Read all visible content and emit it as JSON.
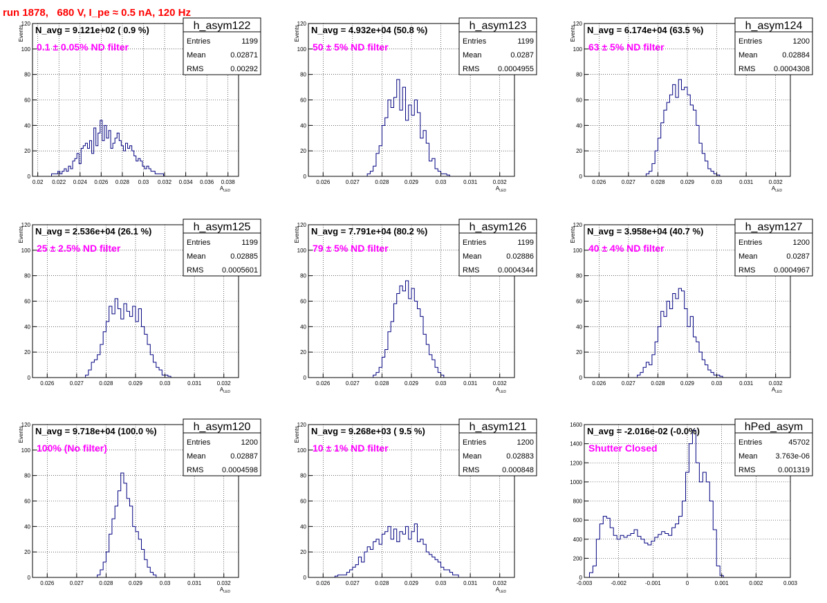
{
  "header": {
    "title": "run 1878,   680 V, I_pe ≈ 0.5 nA, 120 Hz"
  },
  "chart_data": [
    {
      "type": "bar",
      "name": "h_asym122",
      "stats": {
        "entries_label": "Entries",
        "entries": "1199",
        "mean_label": "Mean",
        "mean": "0.02871",
        "rms_label": "RMS",
        "rms": "0.00292"
      },
      "navg": "N_avg = 9.121e+02 ( 0.9 %)",
      "filter": "0.1 ± 0.05% ND filter",
      "ylabel": "Events",
      "xlabel": "A",
      "xlabel_sub": "LED",
      "xlim": [
        0.0195,
        0.039
      ],
      "ylim": [
        0,
        120
      ],
      "xticks": [
        0.02,
        0.022,
        0.024,
        0.026,
        0.028,
        0.03,
        0.032,
        0.034,
        0.036,
        0.038
      ],
      "xtick_labels": [
        "0.02",
        "0.022",
        "0.024",
        "0.026",
        "0.028",
        "0.03",
        "0.032",
        "0.034",
        "0.036",
        "0.038"
      ],
      "yticks": [
        0,
        20,
        40,
        60,
        80,
        100,
        120
      ],
      "bin_start": 0.0213,
      "bin_width": 0.0002,
      "values": [
        2,
        2,
        2,
        4,
        2,
        4,
        6,
        4,
        8,
        6,
        12,
        14,
        18,
        10,
        22,
        24,
        26,
        22,
        28,
        18,
        38,
        24,
        34,
        44,
        28,
        40,
        30,
        36,
        22,
        26,
        30,
        34,
        28,
        24,
        20,
        26,
        22,
        24,
        20,
        16,
        12,
        14,
        12,
        8,
        6,
        8,
        6,
        4,
        4,
        2,
        2,
        2,
        2
      ]
    },
    {
      "type": "bar",
      "name": "h_asym123",
      "stats": {
        "entries_label": "Entries",
        "entries": "1199",
        "mean_label": "Mean",
        "mean": "0.0287",
        "rms_label": "RMS",
        "rms": "0.0004955"
      },
      "navg": "N_avg = 4.932e+04 (50.8 %)",
      "filter": "50 ± 5% ND filter",
      "ylabel": "Events",
      "xlabel": "A",
      "xlabel_sub": "LED",
      "xlim": [
        0.0255,
        0.0325
      ],
      "ylim": [
        0,
        120
      ],
      "xticks": [
        0.026,
        0.027,
        0.028,
        0.029,
        0.03,
        0.031,
        0.032
      ],
      "xtick_labels": [
        "0.026",
        "0.027",
        "0.028",
        "0.029",
        "0.03",
        "0.031",
        "0.032"
      ],
      "yticks": [
        0,
        20,
        40,
        60,
        80,
        100,
        120
      ],
      "bin_start": 0.0275,
      "bin_width": 0.0001,
      "values": [
        2,
        4,
        8,
        18,
        24,
        40,
        46,
        60,
        54,
        62,
        76,
        52,
        70,
        44,
        56,
        48,
        60,
        50,
        30,
        36,
        26,
        12,
        14,
        6,
        4,
        2,
        2,
        1
      ]
    },
    {
      "type": "bar",
      "name": "h_asym124",
      "stats": {
        "entries_label": "Entries",
        "entries": "1200",
        "mean_label": "Mean",
        "mean": "0.02884",
        "rms_label": "RMS",
        "rms": "0.0004308"
      },
      "navg": "N_avg = 6.174e+04 (63.5 %)",
      "filter": "63 ± 5% ND filter",
      "ylabel": "Events",
      "xlabel": "A",
      "xlabel_sub": "LED",
      "xlim": [
        0.0255,
        0.0325
      ],
      "ylim": [
        0,
        120
      ],
      "xticks": [
        0.026,
        0.027,
        0.028,
        0.029,
        0.03,
        0.031,
        0.032
      ],
      "xtick_labels": [
        "0.026",
        "0.027",
        "0.028",
        "0.029",
        "0.03",
        "0.031",
        "0.032"
      ],
      "yticks": [
        0,
        20,
        40,
        60,
        80,
        100,
        120
      ],
      "bin_start": 0.0276,
      "bin_width": 0.0001,
      "values": [
        2,
        4,
        10,
        20,
        30,
        42,
        52,
        58,
        64,
        72,
        62,
        76,
        68,
        70,
        64,
        56,
        52,
        40,
        26,
        18,
        12,
        6,
        4,
        2,
        1
      ]
    },
    {
      "type": "bar",
      "name": "h_asym125",
      "stats": {
        "entries_label": "Entries",
        "entries": "1199",
        "mean_label": "Mean",
        "mean": "0.02885",
        "rms_label": "RMS",
        "rms": "0.0005601"
      },
      "navg": "N_avg = 2.536e+04 (26.1 %)",
      "filter": "25 ± 2.5% ND filter",
      "ylabel": "Events",
      "xlabel": "A",
      "xlabel_sub": "LED",
      "xlim": [
        0.0255,
        0.0325
      ],
      "ylim": [
        0,
        120
      ],
      "xticks": [
        0.026,
        0.027,
        0.028,
        0.029,
        0.03,
        0.031,
        0.032
      ],
      "xtick_labels": [
        "0.026",
        "0.027",
        "0.028",
        "0.029",
        "0.03",
        "0.031",
        "0.032"
      ],
      "yticks": [
        0,
        20,
        40,
        60,
        80,
        100,
        120
      ],
      "bin_start": 0.0273,
      "bin_width": 0.0001,
      "values": [
        2,
        6,
        12,
        14,
        18,
        26,
        36,
        44,
        56,
        50,
        62,
        54,
        46,
        58,
        52,
        48,
        56,
        44,
        54,
        40,
        34,
        26,
        18,
        12,
        8,
        6,
        2,
        2,
        1
      ]
    },
    {
      "type": "bar",
      "name": "h_asym126",
      "stats": {
        "entries_label": "Entries",
        "entries": "1199",
        "mean_label": "Mean",
        "mean": "0.02886",
        "rms_label": "RMS",
        "rms": "0.0004344"
      },
      "navg": "N_avg = 7.791e+04 (80.2 %)",
      "filter": "79 ± 5% ND filter",
      "ylabel": "Events",
      "xlabel": "A",
      "xlabel_sub": "LED",
      "xlim": [
        0.0255,
        0.0325
      ],
      "ylim": [
        0,
        120
      ],
      "xticks": [
        0.026,
        0.027,
        0.028,
        0.029,
        0.03,
        0.031,
        0.032
      ],
      "xtick_labels": [
        "0.026",
        "0.027",
        "0.028",
        "0.029",
        "0.03",
        "0.031",
        "0.032"
      ],
      "yticks": [
        0,
        20,
        40,
        60,
        80,
        100,
        120
      ],
      "bin_start": 0.0277,
      "bin_width": 0.0001,
      "values": [
        2,
        4,
        8,
        16,
        22,
        36,
        44,
        58,
        66,
        72,
        68,
        76,
        62,
        70,
        60,
        54,
        48,
        34,
        26,
        18,
        14,
        8,
        4,
        2
      ]
    },
    {
      "type": "bar",
      "name": "h_asym127",
      "stats": {
        "entries_label": "Entries",
        "entries": "1200",
        "mean_label": "Mean",
        "mean": "0.0287",
        "rms_label": "RMS",
        "rms": "0.0004967"
      },
      "navg": "N_avg = 3.958e+04 (40.7 %)",
      "filter": "40 ± 4% ND filter",
      "ylabel": "Events",
      "xlabel": "A",
      "xlabel_sub": "LED",
      "xlim": [
        0.0255,
        0.0325
      ],
      "ylim": [
        0,
        120
      ],
      "xticks": [
        0.026,
        0.027,
        0.028,
        0.029,
        0.03,
        0.031,
        0.032
      ],
      "xtick_labels": [
        "0.026",
        "0.027",
        "0.028",
        "0.029",
        "0.03",
        "0.031",
        "0.032"
      ],
      "yticks": [
        0,
        20,
        40,
        60,
        80,
        100,
        120
      ],
      "bin_start": 0.0273,
      "bin_width": 0.0001,
      "values": [
        2,
        4,
        8,
        12,
        10,
        18,
        28,
        40,
        52,
        48,
        60,
        54,
        66,
        62,
        70,
        68,
        54,
        40,
        48,
        32,
        28,
        20,
        14,
        10,
        6,
        4,
        2,
        2,
        1
      ]
    },
    {
      "type": "bar",
      "name": "h_asym120",
      "stats": {
        "entries_label": "Entries",
        "entries": "1200",
        "mean_label": "Mean",
        "mean": "0.02887",
        "rms_label": "RMS",
        "rms": "0.0004598"
      },
      "navg": "N_avg = 9.718e+04 (100.0 %)",
      "filter": "100% (No filter)",
      "ylabel": "Events",
      "xlabel": "A",
      "xlabel_sub": "LED",
      "xlim": [
        0.0255,
        0.0325
      ],
      "ylim": [
        0,
        120
      ],
      "xticks": [
        0.026,
        0.027,
        0.028,
        0.029,
        0.03,
        0.031,
        0.032
      ],
      "xtick_labels": [
        "0.026",
        "0.027",
        "0.028",
        "0.029",
        "0.03",
        "0.031",
        "0.032"
      ],
      "yticks": [
        0,
        20,
        40,
        60,
        80,
        100,
        120
      ],
      "bin_start": 0.0277,
      "bin_width": 0.0001,
      "values": [
        2,
        6,
        12,
        20,
        34,
        46,
        56,
        68,
        82,
        74,
        62,
        56,
        40,
        36,
        30,
        22,
        14,
        8,
        4,
        2
      ]
    },
    {
      "type": "bar",
      "name": "h_asym121",
      "stats": {
        "entries_label": "Entries",
        "entries": "1200",
        "mean_label": "Mean",
        "mean": "0.02883",
        "rms_label": "RMS",
        "rms": "0.000848"
      },
      "navg": "N_avg = 9.268e+03 ( 9.5 %)",
      "filter": "10 ± 1% ND filter",
      "ylabel": "Events",
      "xlabel": "A",
      "xlabel_sub": "LED",
      "xlim": [
        0.0255,
        0.0325
      ],
      "ylim": [
        0,
        120
      ],
      "xticks": [
        0.026,
        0.027,
        0.028,
        0.029,
        0.03,
        0.031,
        0.032
      ],
      "xtick_labels": [
        "0.026",
        "0.027",
        "0.028",
        "0.029",
        "0.03",
        "0.031",
        "0.032"
      ],
      "yticks": [
        0,
        20,
        40,
        60,
        80,
        100,
        120
      ],
      "bin_start": 0.0264,
      "bin_width": 0.0001,
      "values": [
        1,
        2,
        2,
        2,
        4,
        6,
        8,
        10,
        16,
        12,
        20,
        24,
        22,
        28,
        30,
        26,
        34,
        36,
        40,
        30,
        38,
        28,
        36,
        34,
        40,
        30,
        36,
        42,
        28,
        30,
        26,
        20,
        18,
        16,
        14,
        12,
        8,
        6,
        6,
        4,
        2,
        2
      ]
    },
    {
      "type": "bar",
      "name": "hPed_asym",
      "stats": {
        "entries_label": "Entries",
        "entries": "45702",
        "mean_label": "Mean",
        "mean": "3.763e-06",
        "rms_label": "RMS",
        "rms": "0.001319"
      },
      "navg": "N_avg = -2.016e-02 (-0.0%)",
      "filter": "Shutter Closed",
      "ylabel": "",
      "xlabel": "",
      "xlabel_sub": "",
      "xlim": [
        -0.003,
        0.003
      ],
      "ylim": [
        0,
        1600
      ],
      "xticks": [
        -0.003,
        -0.002,
        -0.001,
        0,
        0.001,
        0.002,
        0.003
      ],
      "xtick_labels": [
        "-0.003",
        "-0.002",
        "-0.001",
        "0",
        "0.001",
        "0.002",
        "0.003"
      ],
      "yticks": [
        0,
        200,
        400,
        600,
        800,
        1000,
        1200,
        1400,
        1600
      ],
      "bin_start": -0.00285,
      "bin_width": 0.0001,
      "values": [
        50,
        120,
        400,
        560,
        640,
        620,
        520,
        440,
        400,
        440,
        420,
        440,
        460,
        500,
        430,
        400,
        360,
        340,
        380,
        420,
        450,
        480,
        460,
        440,
        520,
        560,
        640,
        800,
        1100,
        1400,
        1540,
        1200,
        1000,
        1100,
        1000,
        800,
        500,
        120,
        20
      ]
    }
  ]
}
